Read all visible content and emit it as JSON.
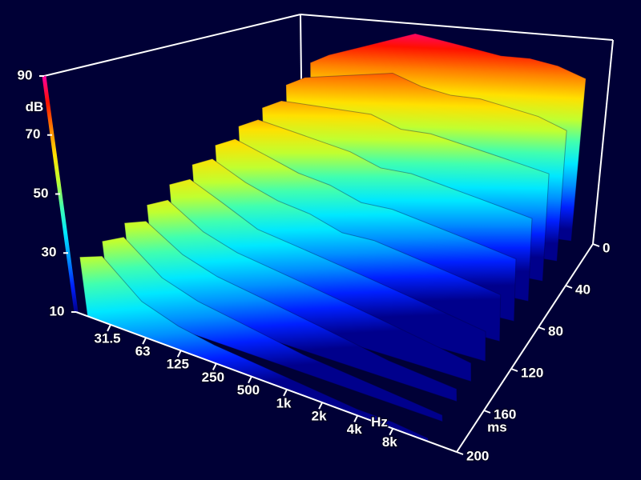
{
  "chart_data": {
    "type": "waterfall3d",
    "x": [
      20,
      31.5,
      63,
      125,
      250,
      500,
      1000,
      2000,
      4000,
      8000,
      16000
    ],
    "times": [
      0,
      20,
      40,
      60,
      80,
      100,
      120,
      140,
      160,
      180,
      200
    ],
    "series": [
      {
        "values": [
          70,
          74,
          78,
          82,
          86,
          84,
          82,
          80,
          80,
          78,
          74
        ]
      },
      {
        "values": [
          64,
          68,
          70,
          72,
          74,
          70,
          68,
          68,
          66,
          64,
          60
        ]
      },
      {
        "values": [
          58,
          62,
          62,
          62,
          62,
          58,
          58,
          56,
          54,
          52,
          50
        ]
      },
      {
        "values": [
          54,
          58,
          56,
          54,
          52,
          48,
          48,
          46,
          44,
          42,
          40
        ]
      },
      {
        "values": [
          50,
          54,
          50,
          46,
          44,
          40,
          40,
          38,
          36,
          34,
          32
        ]
      },
      {
        "values": [
          46,
          50,
          44,
          40,
          38,
          34,
          34,
          32,
          30,
          28,
          26
        ]
      },
      {
        "values": [
          42,
          46,
          40,
          34,
          32,
          30,
          28,
          26,
          24,
          22,
          20
        ]
      },
      {
        "values": [
          38,
          42,
          34,
          30,
          28,
          26,
          24,
          22,
          20,
          18,
          16
        ]
      },
      {
        "values": [
          35,
          38,
          30,
          26,
          24,
          22,
          20,
          18,
          16,
          15,
          14
        ]
      },
      {
        "values": [
          32,
          36,
          26,
          22,
          20,
          18,
          16,
          15,
          14,
          13,
          12
        ]
      },
      {
        "values": [
          30,
          33,
          22,
          18,
          16,
          15,
          14,
          13,
          12,
          12,
          11
        ]
      }
    ],
    "xlabel": "Hz",
    "xlim": [
      16,
      28000
    ],
    "xscale": "log",
    "xticks": [
      31.5,
      63,
      125,
      250,
      500,
      {
        "value": 1000,
        "label": "1k"
      },
      {
        "value": 2000,
        "label": "2k"
      },
      {
        "value": 4000,
        "label": "4k"
      },
      {
        "value": 8000,
        "label": "8k"
      }
    ],
    "tlabel": "ms",
    "tlim": [
      200,
      0
    ],
    "tticks": [
      0,
      40,
      80,
      120,
      160,
      200
    ],
    "zlabel": "dB",
    "zlim": [
      10,
      90
    ],
    "zticks": [
      10,
      30,
      50,
      70,
      90
    ],
    "colormap": [
      "#00008c",
      "#0020ff",
      "#0090ff",
      "#00e8ff",
      "#40ffb0",
      "#c0ff30",
      "#ffe000",
      "#ff8000",
      "#ff1000",
      "#ff00a0"
    ]
  }
}
